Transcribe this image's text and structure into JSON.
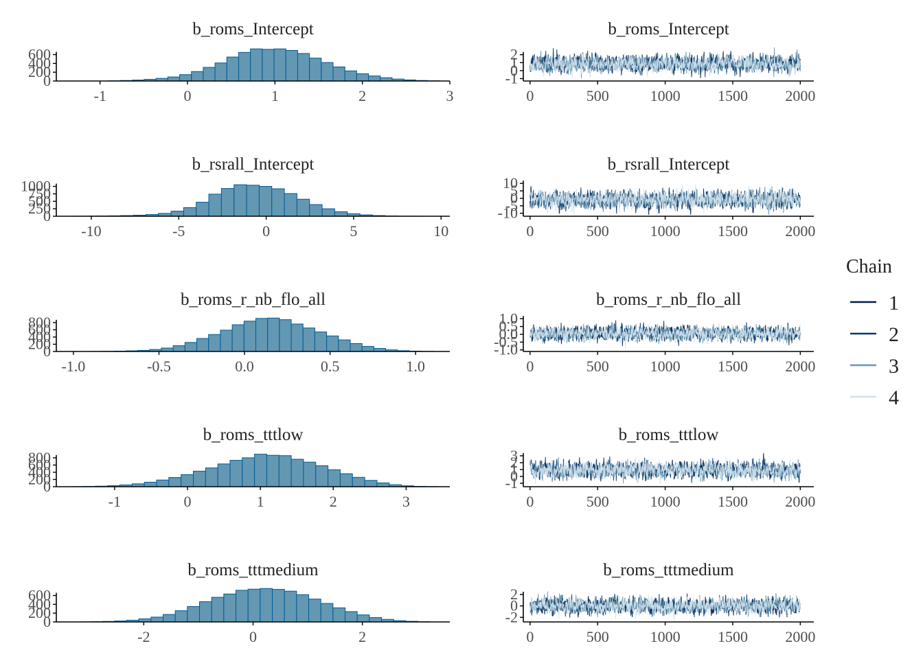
{
  "legend": {
    "title": "Chain",
    "entries": [
      {
        "label": "1",
        "color": "#011f4b"
      },
      {
        "label": "2",
        "color": "#03396c"
      },
      {
        "label": "3",
        "color": "#6497b1"
      },
      {
        "label": "4",
        "color": "#d1e1ec"
      }
    ]
  },
  "colors": {
    "hist_fill": "#6497b1",
    "hist_edge": "#005b96",
    "axis": "#000000"
  },
  "chart_data": [
    {
      "type": "bar",
      "kind": "histogram",
      "title": "b_roms_Intercept",
      "xlim": [
        -1.5,
        3.0
      ],
      "ylim": [
        0,
        780
      ],
      "xticks": [
        -1,
        0,
        1,
        2,
        3
      ],
      "xtick_labels": [
        "-1",
        "0",
        "1",
        "2",
        "3"
      ],
      "yticks": [
        0,
        200,
        400,
        600
      ],
      "ytick_labels": [
        "0",
        "200",
        "400",
        "600"
      ],
      "bin_start": -0.9,
      "bin_width": 0.135,
      "counts": [
        5,
        12,
        22,
        38,
        60,
        92,
        145,
        215,
        310,
        410,
        545,
        650,
        730,
        720,
        730,
        695,
        625,
        520,
        420,
        320,
        230,
        165,
        115,
        75,
        45,
        25,
        12,
        5
      ]
    },
    {
      "type": "line",
      "kind": "trace",
      "title": "b_roms_Intercept",
      "xlim": [
        -50,
        2100
      ],
      "ylim": [
        -1.3,
        3.0
      ],
      "xticks": [
        0,
        500,
        1000,
        1500,
        2000
      ],
      "xtick_labels": [
        "0",
        "500",
        "1000",
        "1500",
        "2000"
      ],
      "yticks": [
        -1,
        0,
        1,
        2
      ],
      "ytick_labels": [
        "-1",
        "0",
        "1",
        "2"
      ],
      "iterations": 2000,
      "center": 0.85,
      "sd": 0.55,
      "seed": 11
    },
    {
      "type": "bar",
      "kind": "histogram",
      "title": "b_rsrall_Intercept",
      "xlim": [
        -12.0,
        10.5
      ],
      "ylim": [
        0,
        1150
      ],
      "xticks": [
        -10,
        -5,
        0,
        5,
        10
      ],
      "xtick_labels": [
        "-10",
        "-5",
        "0",
        "5",
        "10"
      ],
      "yticks": [
        0,
        250,
        500,
        750,
        1000
      ],
      "ytick_labels": [
        "0",
        "250",
        "500",
        "750",
        "1000"
      ],
      "bin_start": -11.2,
      "bin_width": 0.72,
      "counts": [
        2,
        5,
        8,
        14,
        22,
        35,
        58,
        95,
        170,
        290,
        470,
        740,
        930,
        1055,
        1040,
        1000,
        920,
        760,
        570,
        390,
        250,
        150,
        85,
        45,
        22,
        10,
        4,
        2
      ]
    },
    {
      "type": "line",
      "kind": "trace",
      "title": "b_rsrall_Intercept",
      "xlim": [
        -50,
        2100
      ],
      "ylim": [
        -12.0,
        11.0
      ],
      "xticks": [
        0,
        500,
        1000,
        1500,
        2000
      ],
      "xtick_labels": [
        "0",
        "500",
        "1000",
        "1500",
        "2000"
      ],
      "yticks": [
        -10,
        -5,
        0,
        5,
        10
      ],
      "ytick_labels": [
        "-10",
        "-5",
        "0",
        "5",
        "10"
      ],
      "iterations": 2000,
      "center": -0.8,
      "sd": 3.0,
      "seed": 23
    },
    {
      "type": "bar",
      "kind": "histogram",
      "title": "b_roms_r_nb_flo_all",
      "xlim": [
        -1.1,
        1.2
      ],
      "ylim": [
        0,
        950
      ],
      "xticks": [
        -1.0,
        -0.5,
        0.0,
        0.5,
        1.0
      ],
      "xtick_labels": [
        "-1.0",
        "-0.5",
        "0.0",
        "0.5",
        "1.0"
      ],
      "yticks": [
        0,
        200,
        400,
        600,
        800
      ],
      "ytick_labels": [
        "0",
        "200",
        "400",
        "600",
        "800"
      ],
      "bin_start": -0.9,
      "bin_width": 0.069,
      "counts": [
        2,
        5,
        10,
        18,
        30,
        55,
        95,
        160,
        250,
        360,
        470,
        590,
        740,
        840,
        915,
        925,
        880,
        760,
        650,
        540,
        430,
        320,
        220,
        140,
        85,
        45,
        22,
        10,
        4
      ]
    },
    {
      "type": "line",
      "kind": "trace",
      "title": "b_roms_r_nb_flo_all",
      "xlim": [
        -50,
        2100
      ],
      "ylim": [
        -1.1,
        1.1
      ],
      "xticks": [
        0,
        500,
        1000,
        1500,
        2000
      ],
      "xtick_labels": [
        "0",
        "500",
        "1000",
        "1500",
        "2000"
      ],
      "yticks": [
        -1.0,
        -0.5,
        0.0,
        0.5,
        1.0
      ],
      "ytick_labels": [
        "-1.0",
        "-0.5",
        "0.0",
        "0.5",
        "1.0"
      ],
      "iterations": 2000,
      "center": 0.05,
      "sd": 0.24,
      "seed": 37
    },
    {
      "type": "bar",
      "kind": "histogram",
      "title": "b_roms_tttlow",
      "xlim": [
        -1.8,
        3.6
      ],
      "ylim": [
        0,
        950
      ],
      "xticks": [
        -1,
        0,
        1,
        2,
        3
      ],
      "xtick_labels": [
        "-1",
        "0",
        "1",
        "2",
        "3"
      ],
      "yticks": [
        0,
        200,
        400,
        600,
        800
      ],
      "ytick_labels": [
        "0",
        "200",
        "400",
        "600",
        "800"
      ],
      "bin_start": -1.6,
      "bin_width": 0.168,
      "counts": [
        3,
        8,
        15,
        28,
        50,
        80,
        125,
        185,
        255,
        335,
        430,
        520,
        630,
        730,
        800,
        900,
        870,
        860,
        760,
        680,
        580,
        470,
        360,
        260,
        175,
        105,
        55,
        25,
        10,
        4
      ]
    },
    {
      "type": "line",
      "kind": "trace",
      "title": "b_roms_tttlow",
      "xlim": [
        -50,
        2100
      ],
      "ylim": [
        -1.5,
        3.5
      ],
      "xticks": [
        0,
        500,
        1000,
        1500,
        2000
      ],
      "xtick_labels": [
        "0",
        "500",
        "1000",
        "1500",
        "2000"
      ],
      "yticks": [
        -1,
        0,
        1,
        2,
        3
      ],
      "ytick_labels": [
        "-1",
        "0",
        "1",
        "2",
        "3"
      ],
      "iterations": 2000,
      "center": 0.95,
      "sd": 0.62,
      "seed": 53
    },
    {
      "type": "bar",
      "kind": "histogram",
      "title": "b_roms_tttmedium",
      "xlim": [
        -3.6,
        3.6
      ],
      "ylim": [
        0,
        780
      ],
      "xticks": [
        -2,
        0,
        2
      ],
      "xtick_labels": [
        "-2",
        "0",
        "2"
      ],
      "yticks": [
        0,
        200,
        400,
        600
      ],
      "ytick_labels": [
        "0",
        "200",
        "400",
        "600"
      ],
      "bin_start": -3.2,
      "bin_width": 0.222,
      "counts": [
        2,
        6,
        12,
        22,
        40,
        70,
        110,
        170,
        255,
        350,
        460,
        560,
        635,
        720,
        745,
        760,
        740,
        700,
        620,
        520,
        420,
        320,
        235,
        160,
        100,
        58,
        30,
        14,
        5
      ]
    },
    {
      "type": "line",
      "kind": "trace",
      "title": "b_roms_tttmedium",
      "xlim": [
        -50,
        2100
      ],
      "ylim": [
        -2.8,
        3.2
      ],
      "xticks": [
        0,
        500,
        1000,
        1500,
        2000
      ],
      "xtick_labels": [
        "0",
        "500",
        "1000",
        "1500",
        "2000"
      ],
      "yticks": [
        -2,
        0,
        2
      ],
      "ytick_labels": [
        "-2",
        "0",
        "2"
      ],
      "iterations": 2000,
      "center": 0.0,
      "sd": 0.72,
      "seed": 71
    }
  ]
}
